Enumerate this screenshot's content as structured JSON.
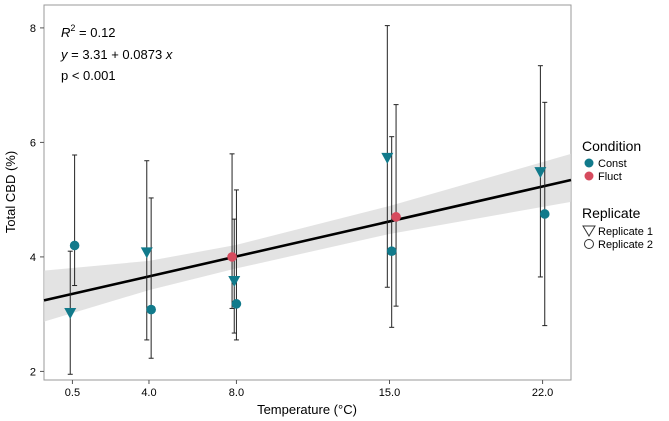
{
  "chart_data": {
    "type": "scatter",
    "xlabel": "Temperature (°C)",
    "ylabel": "Total CBD (%)",
    "x_ticks": [
      "0.5",
      "4.0",
      "8.0",
      "15.0",
      "22.0"
    ],
    "y_ticks": [
      2,
      4,
      6,
      8
    ],
    "xlim": [
      -0.8,
      23.3
    ],
    "ylim": [
      1.85,
      8.4
    ],
    "grid": false,
    "annotations": {
      "r2_prefix": "R",
      "r2_sup": "2",
      "r2_value": " = 0.12",
      "equation_y": "y",
      "equation_mid": " = 3.31 + 0.0873 ",
      "equation_x": "x",
      "p_value": "p < 0.001"
    },
    "regression": {
      "intercept": 3.31,
      "slope": 0.0873,
      "band": [
        {
          "x": -0.8,
          "lo": 2.87,
          "hi": 3.76
        },
        {
          "x": 4.0,
          "lo": 3.42,
          "hi": 3.93
        },
        {
          "x": 8.0,
          "lo": 3.8,
          "hi": 4.21
        },
        {
          "x": 15.0,
          "lo": 4.4,
          "hi": 4.89
        },
        {
          "x": 23.3,
          "lo": 4.96,
          "hi": 5.8
        }
      ]
    },
    "legend": {
      "placement": "right",
      "condition_title": "Condition",
      "condition_entries": [
        {
          "label": "Const",
          "color": "#117A8B"
        },
        {
          "label": "Fluct",
          "color": "#D64B5E"
        }
      ],
      "replicate_title": "Replicate",
      "replicate_entries": [
        {
          "label": "Replicate 1",
          "shape": "triangle-down"
        },
        {
          "label": "Replicate 2",
          "shape": "circle"
        }
      ]
    },
    "points": [
      {
        "x": 0.4,
        "y": 3.02,
        "lo": 1.95,
        "hi": 4.1,
        "condition": "Const",
        "replicate": "Replicate 1"
      },
      {
        "x": 0.6,
        "y": 4.2,
        "lo": 3.5,
        "hi": 5.78,
        "condition": "Const",
        "replicate": "Replicate 2"
      },
      {
        "x": 3.9,
        "y": 4.08,
        "lo": 2.55,
        "hi": 5.68,
        "condition": "Const",
        "replicate": "Replicate 1"
      },
      {
        "x": 4.1,
        "y": 3.08,
        "lo": 2.23,
        "hi": 5.03,
        "condition": "Const",
        "replicate": "Replicate 2"
      },
      {
        "x": 7.8,
        "y": 4.0,
        "lo": 3.1,
        "hi": 5.8,
        "condition": "Fluct",
        "replicate": "Replicate 2"
      },
      {
        "x": 7.9,
        "y": 3.58,
        "lo": 2.67,
        "hi": 4.66,
        "condition": "Const",
        "replicate": "Replicate 1"
      },
      {
        "x": 8.0,
        "y": 3.18,
        "lo": 2.55,
        "hi": 5.17,
        "condition": "Const",
        "replicate": "Replicate 2"
      },
      {
        "x": 14.9,
        "y": 5.73,
        "lo": 3.47,
        "hi": 8.04,
        "condition": "Const",
        "replicate": "Replicate 1"
      },
      {
        "x": 15.1,
        "y": 4.1,
        "lo": 2.77,
        "hi": 6.1,
        "condition": "Const",
        "replicate": "Replicate 2"
      },
      {
        "x": 15.3,
        "y": 4.7,
        "lo": 3.14,
        "hi": 6.66,
        "condition": "Fluct",
        "replicate": "Replicate 2"
      },
      {
        "x": 21.9,
        "y": 5.48,
        "lo": 3.65,
        "hi": 7.34,
        "condition": "Const",
        "replicate": "Replicate 1"
      },
      {
        "x": 22.1,
        "y": 4.75,
        "lo": 2.8,
        "hi": 6.7,
        "condition": "Const",
        "replicate": "Replicate 2"
      }
    ]
  }
}
